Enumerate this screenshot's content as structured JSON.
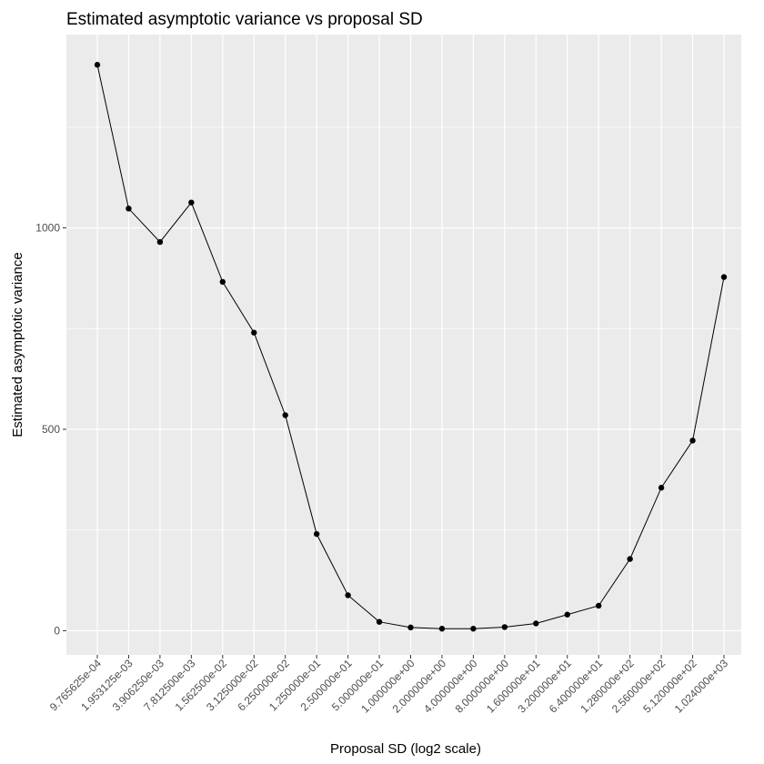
{
  "chart_data": {
    "type": "line",
    "title": "Estimated asymptotic variance vs proposal SD",
    "xlabel": "Proposal SD (log2 scale)",
    "ylabel": "Estimated asymptotic variance",
    "x_scale": "log2",
    "categories": [
      "9.765625e-04",
      "1.953125e-03",
      "3.906250e-03",
      "7.812500e-03",
      "1.562500e-02",
      "3.125000e-02",
      "6.250000e-02",
      "1.250000e-01",
      "2.500000e-01",
      "5.000000e-01",
      "1.000000e+00",
      "2.000000e+00",
      "4.000000e+00",
      "8.000000e+00",
      "1.600000e+01",
      "3.200000e+01",
      "6.400000e+01",
      "1.280000e+02",
      "2.560000e+02",
      "5.120000e+02",
      "1.024000e+03"
    ],
    "values": [
      1405,
      1048,
      965,
      1063,
      866,
      740,
      535,
      240,
      88,
      22,
      8,
      5,
      5,
      9,
      18,
      40,
      62,
      178,
      355,
      472,
      878
    ],
    "yticks": [
      0,
      500,
      1000
    ],
    "ytick_labels": [
      "0",
      "500",
      "1000"
    ],
    "ylim": [
      -60,
      1480
    ],
    "grid": true,
    "colors": {
      "panel": "#ebebeb",
      "grid_major": "#ffffff",
      "line": "#000000",
      "point": "#000000"
    }
  }
}
